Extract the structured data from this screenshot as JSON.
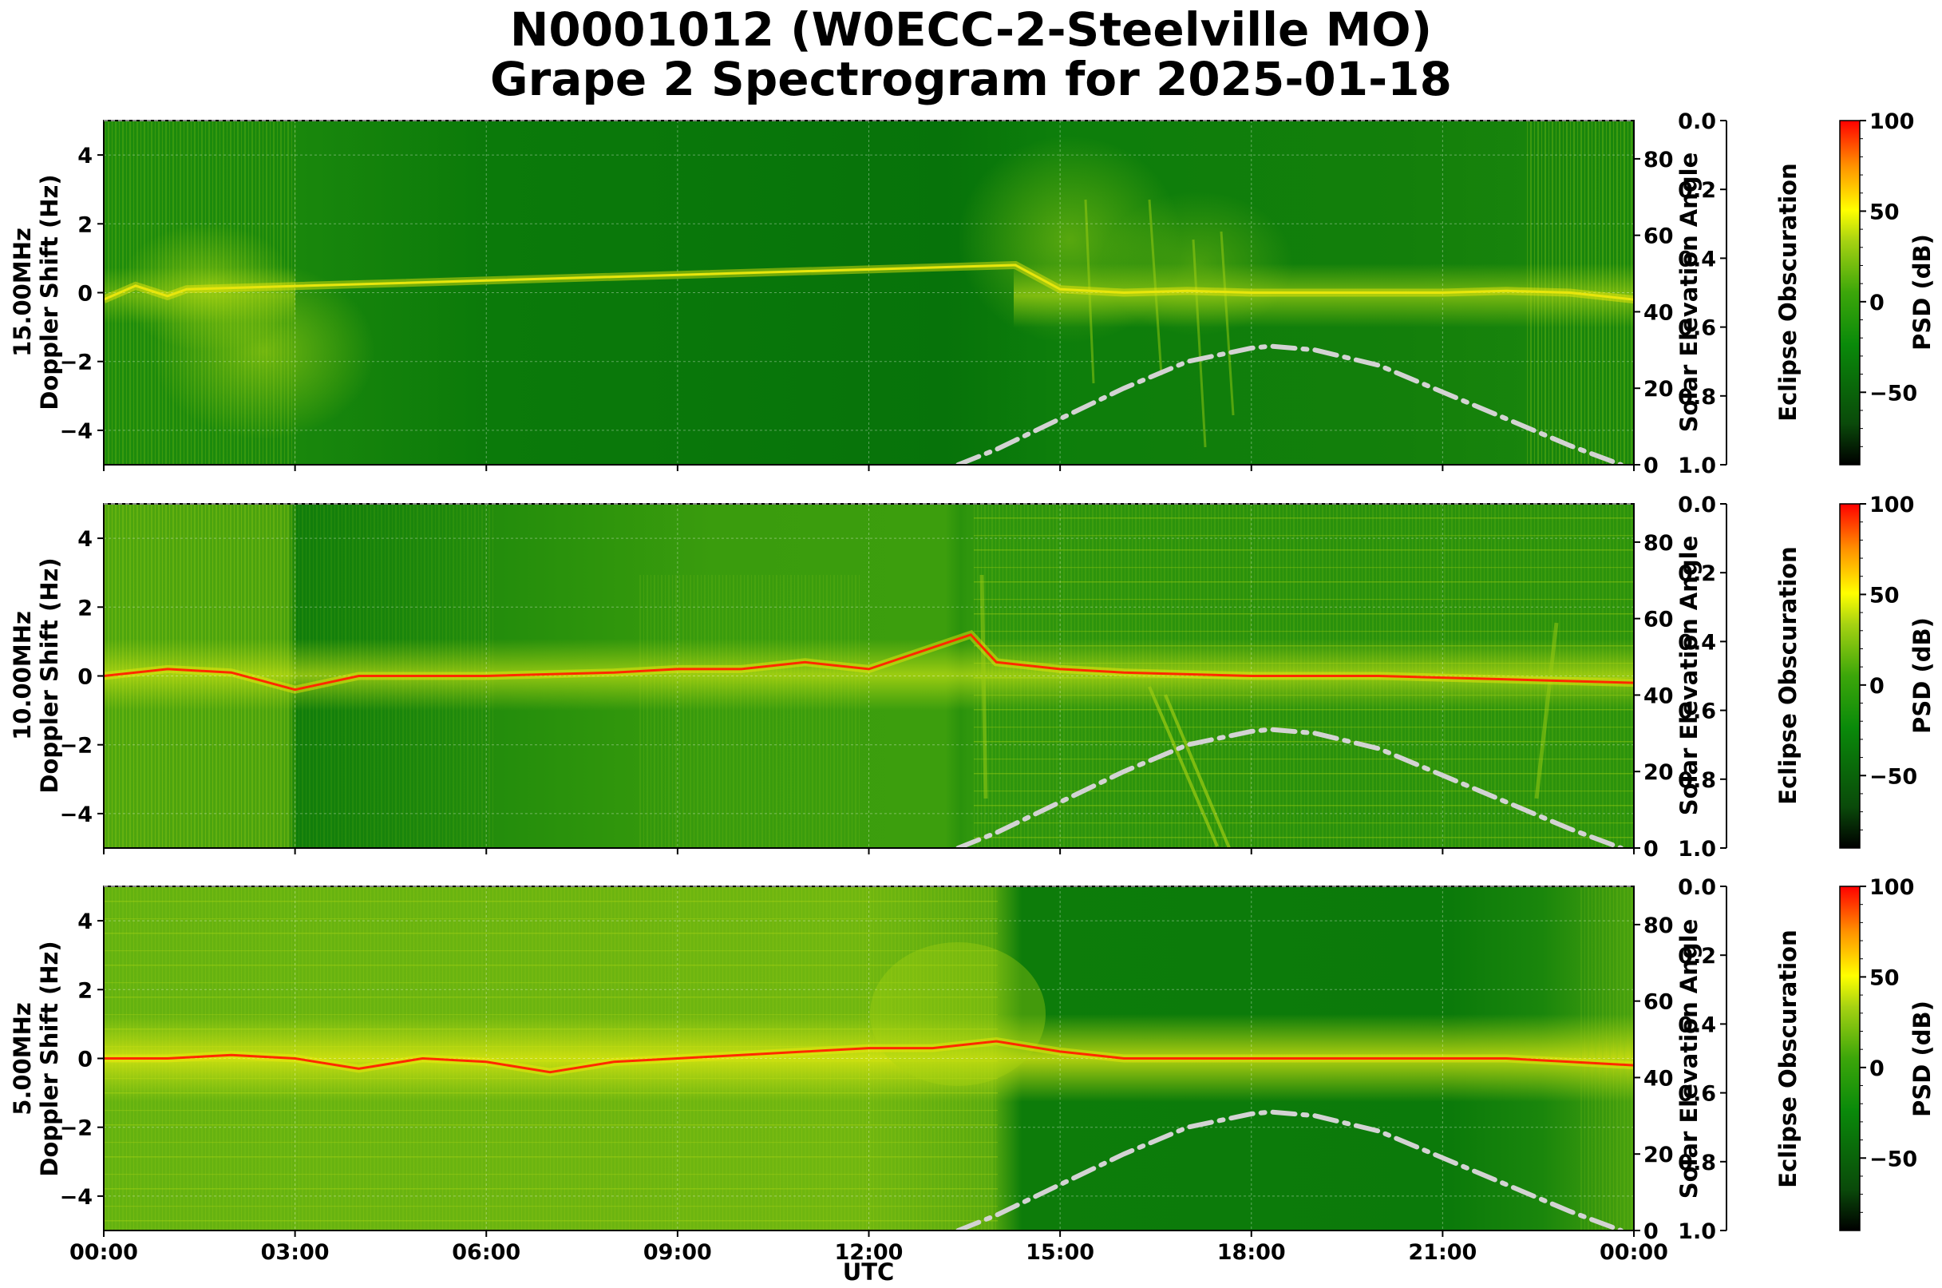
{
  "title": {
    "line1": "N0001012 (W0ECC-2-Steelville MO)",
    "line2": "Grape 2 Spectrogram for 2025-01-18"
  },
  "colors": {
    "background_green": "#0a7a0a",
    "trace_yellow": "#e8e60c",
    "trace_red": "#ff2a00",
    "solar_curve": "#d3d3d3",
    "colormap": [
      "#000000",
      "#0a4a0a",
      "#0a8a0a",
      "#3ca60a",
      "#a6d212",
      "#ffff00",
      "#ff9000",
      "#ff0000"
    ]
  },
  "chart_data": [
    {
      "type": "heatmap",
      "panel": "15.00MHz",
      "ylabel_line1": "15.00MHz",
      "ylabel_line2": "Doppler Shift (Hz)",
      "ylim": [
        -5,
        5
      ],
      "yticks": [
        "4",
        "2",
        "0",
        "−2",
        "−4"
      ],
      "right_axis_label": "Solar Elevation Angle",
      "right_ylim": [
        0,
        90
      ],
      "right_ticks": [
        "80",
        "60",
        "40",
        "20",
        "0"
      ],
      "eclipse_label": "Eclipse Obscuration",
      "eclipse_ticks": [
        "0.0",
        "0.2",
        "0.4",
        "0.6",
        "0.8",
        "1.0"
      ],
      "colorbar_label": "PSD (dB)",
      "colorbar_ticks": [
        "100",
        "50",
        "0",
        "−50"
      ],
      "colorbar_range": [
        -90,
        100
      ],
      "solar_elevation": {
        "x_hours": [
          13.4,
          14,
          15,
          16,
          17,
          18,
          18.3,
          19,
          20,
          21,
          22,
          23,
          23.8
        ],
        "values": [
          0,
          4,
          12,
          20,
          27,
          30.5,
          31,
          30,
          26,
          19,
          12,
          5,
          0
        ]
      },
      "doppler_trace": {
        "x_hours": [
          0,
          0.5,
          1,
          1.3,
          14.3,
          15,
          16,
          17,
          18,
          19,
          20,
          21,
          22,
          23,
          24
        ],
        "values": [
          -0.2,
          0.2,
          -0.1,
          0.1,
          0.8,
          0.1,
          0.0,
          0.05,
          0.0,
          0.0,
          0.0,
          0.0,
          0.05,
          0.0,
          -0.2
        ]
      }
    },
    {
      "type": "heatmap",
      "panel": "10.00MHz",
      "ylabel_line1": "10.00MHz",
      "ylabel_line2": "Doppler Shift (Hz)",
      "ylim": [
        -5,
        5
      ],
      "yticks": [
        "4",
        "2",
        "0",
        "−2",
        "−4"
      ],
      "right_axis_label": "Solar Elevation Angle",
      "right_ylim": [
        0,
        90
      ],
      "right_ticks": [
        "80",
        "60",
        "40",
        "20",
        "0"
      ],
      "eclipse_label": "Eclipse Obscuration",
      "eclipse_ticks": [
        "0.0",
        "0.2",
        "0.4",
        "0.6",
        "0.8",
        "1.0"
      ],
      "colorbar_label": "PSD (dB)",
      "colorbar_ticks": [
        "100",
        "50",
        "0",
        "−50"
      ],
      "colorbar_range": [
        -90,
        100
      ],
      "solar_elevation": {
        "x_hours": [
          13.4,
          14,
          15,
          16,
          17,
          18,
          18.3,
          19,
          20,
          21,
          22,
          23,
          23.8
        ],
        "values": [
          0,
          4,
          12,
          20,
          27,
          30.5,
          31,
          30,
          26,
          19,
          12,
          5,
          0
        ]
      },
      "doppler_trace": {
        "x_hours": [
          0,
          1,
          2,
          3,
          4,
          6,
          8,
          9,
          10,
          11,
          12,
          13.6,
          14,
          15,
          16,
          18,
          20,
          22,
          24
        ],
        "values": [
          0,
          0.2,
          0.1,
          -0.4,
          0.0,
          0.0,
          0.1,
          0.2,
          0.2,
          0.4,
          0.2,
          1.2,
          0.4,
          0.2,
          0.1,
          0.0,
          0.0,
          -0.1,
          -0.2
        ]
      }
    },
    {
      "type": "heatmap",
      "panel": "5.00MHz",
      "ylabel_line1": "5.00MHz",
      "ylabel_line2": "Doppler Shift (Hz)",
      "ylim": [
        -5,
        5
      ],
      "yticks": [
        "4",
        "2",
        "0",
        "−2",
        "−4"
      ],
      "right_axis_label": "Solar Elevation Angle",
      "right_ylim": [
        0,
        90
      ],
      "right_ticks": [
        "80",
        "60",
        "40",
        "20",
        "0"
      ],
      "eclipse_label": "Eclipse Obscuration",
      "eclipse_ticks": [
        "0.0",
        "0.2",
        "0.4",
        "0.6",
        "0.8",
        "1.0"
      ],
      "colorbar_label": "PSD (dB)",
      "colorbar_ticks": [
        "100",
        "50",
        "0",
        "−50"
      ],
      "colorbar_range": [
        -90,
        100
      ],
      "xlabel": "UTC",
      "xticks": [
        "00:00",
        "03:00",
        "06:00",
        "09:00",
        "12:00",
        "15:00",
        "18:00",
        "21:00",
        "00:00"
      ],
      "solar_elevation": {
        "x_hours": [
          13.4,
          14,
          15,
          16,
          17,
          18,
          18.3,
          19,
          20,
          21,
          22,
          23,
          23.8
        ],
        "values": [
          0,
          4,
          12,
          20,
          27,
          30.5,
          31,
          30,
          26,
          19,
          12,
          5,
          0
        ]
      },
      "doppler_trace": {
        "x_hours": [
          0,
          1,
          2,
          3,
          4,
          5,
          6,
          7,
          8,
          9,
          10,
          11,
          12,
          13,
          14,
          15,
          16,
          18,
          20,
          22,
          23,
          24
        ],
        "values": [
          0,
          0.0,
          0.1,
          0.0,
          -0.3,
          0.0,
          -0.1,
          -0.4,
          -0.1,
          0.0,
          0.1,
          0.2,
          0.3,
          0.3,
          0.5,
          0.2,
          0.0,
          0.0,
          0.0,
          0.0,
          -0.1,
          -0.2
        ]
      }
    }
  ]
}
